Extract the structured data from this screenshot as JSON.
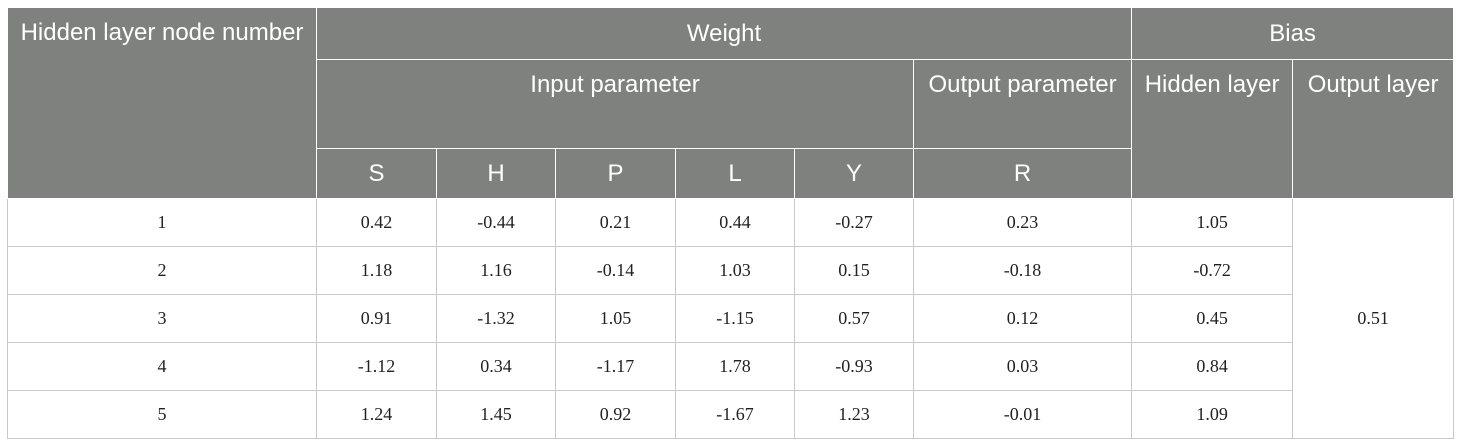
{
  "headers": {
    "hidden_node": "Hidden layer node number",
    "weight": "Weight",
    "bias": "Bias",
    "input_parameter": "Input parameter",
    "output_parameter": "Output parameter",
    "hidden_layer": "Hidden layer",
    "output_layer": "Output layer",
    "col_s": "S",
    "col_h": "H",
    "col_p": "P",
    "col_l": "L",
    "col_y": "Y",
    "col_r": "R"
  },
  "rows": [
    {
      "node": "1",
      "S": "0.42",
      "H": "-0.44",
      "P": "0.21",
      "L": "0.44",
      "Y": "-0.27",
      "R": "0.23",
      "hidden_bias": "1.05"
    },
    {
      "node": "2",
      "S": "1.18",
      "H": "1.16",
      "P": "-0.14",
      "L": "1.03",
      "Y": "0.15",
      "R": "-0.18",
      "hidden_bias": "-0.72"
    },
    {
      "node": "3",
      "S": "0.91",
      "H": "-1.32",
      "P": "1.05",
      "L": "-1.15",
      "Y": "0.57",
      "R": "0.12",
      "hidden_bias": "0.45"
    },
    {
      "node": "4",
      "S": "-1.12",
      "H": "0.34",
      "P": "-1.17",
      "L": "1.78",
      "Y": "-0.93",
      "R": "0.03",
      "hidden_bias": "0.84"
    },
    {
      "node": "5",
      "S": "1.24",
      "H": "1.45",
      "P": "0.92",
      "L": "-1.67",
      "Y": "1.23",
      "R": "-0.01",
      "hidden_bias": "1.09"
    }
  ],
  "output_layer_bias": "0.51",
  "colors": {
    "header_bg": "#7f817f",
    "header_text": "#ffffff",
    "grid_line": "#c8c8c8"
  }
}
